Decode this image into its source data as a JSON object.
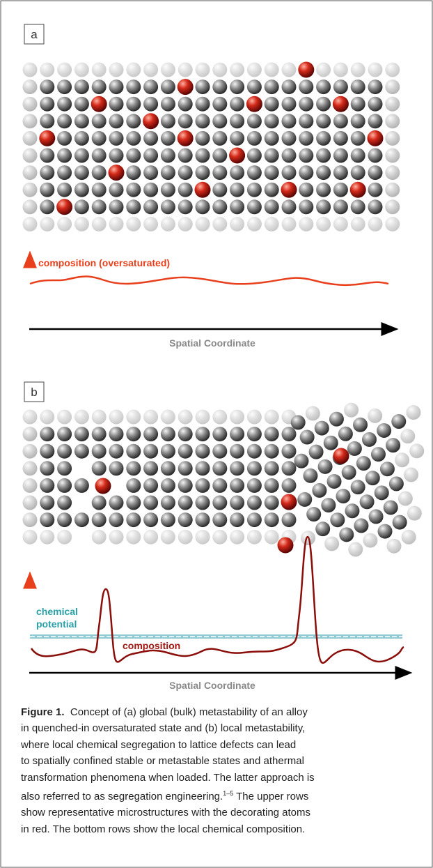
{
  "panel_a": {
    "label": "a",
    "curve_label": "composition (oversaturated)",
    "axis_label": "Spatial Coordinate"
  },
  "panel_b": {
    "label": "b",
    "potential_label": [
      "chemical",
      "potential"
    ],
    "curve_label": "composition",
    "axis_label": "Spatial Coordinate"
  },
  "caption": {
    "label": "Figure 1.",
    "lines": [
      "Concept of (a) global (bulk) metastability of an alloy",
      "in quenched-in oversaturated state and (b) local metastability,",
      "where local chemical segregation to lattice defects can lead",
      "to spatially confined stable or metastable states and athermal",
      "transformation phenomena when loaded. The latter approach is",
      {
        "text": "also referred to as segregation engineering.",
        "citation": "1–5",
        "rest": " The upper rows"
      },
      "show representative microstructures with the decorating atoms",
      "in red. The bottom rows show the local chemical composition."
    ]
  }
}
